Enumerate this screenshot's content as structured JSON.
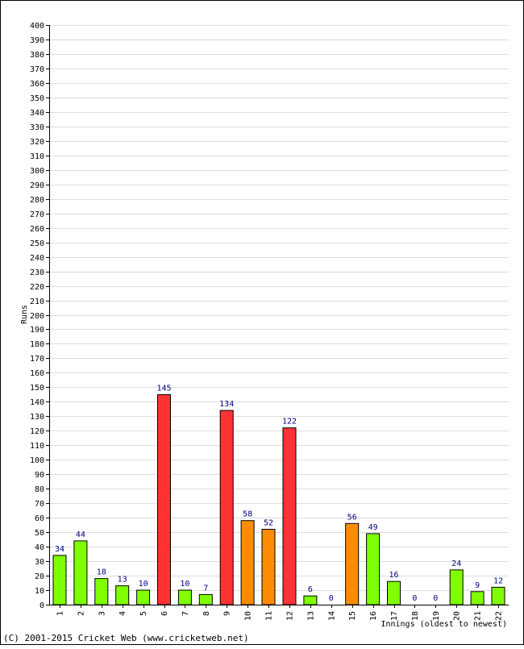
{
  "chart_data": {
    "type": "bar",
    "ylabel": "Runs",
    "xlabel": "Innings (oldest to newest)",
    "ylim": [
      0,
      400
    ],
    "ytick_step": 10,
    "grid": true,
    "categories": [
      "1",
      "2",
      "3",
      "4",
      "5",
      "6",
      "7",
      "8",
      "9",
      "10",
      "11",
      "12",
      "13",
      "14",
      "15",
      "16",
      "17",
      "18",
      "19",
      "20",
      "21",
      "22"
    ],
    "values": [
      34,
      44,
      18,
      13,
      10,
      145,
      10,
      7,
      134,
      58,
      52,
      122,
      6,
      0,
      56,
      49,
      16,
      0,
      0,
      24,
      9,
      12
    ],
    "value_labels": [
      "34",
      "44",
      "18",
      "13",
      "10",
      "145",
      "10",
      "7",
      "134",
      "58",
      "52",
      "122",
      "6",
      "0",
      "56",
      "49",
      "16",
      "0",
      "0",
      "24",
      "9",
      "12"
    ],
    "bar_colors": {
      "under_50": "#80ff00",
      "fifty": "#ff8c00",
      "hundred": "#ff3333"
    }
  },
  "footer": {
    "copyright": "(C) 2001-2015 Cricket Web (www.cricketweb.net)"
  }
}
